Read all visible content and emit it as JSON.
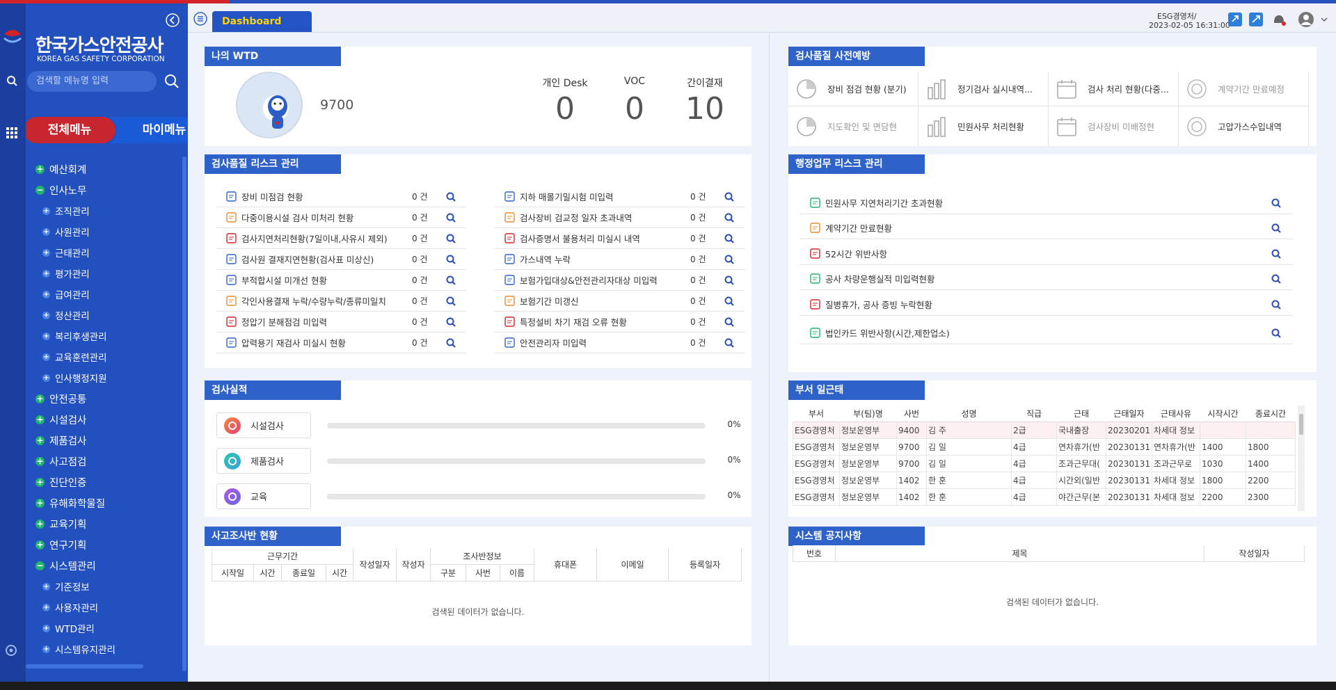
{
  "sidebar": {
    "org_name": "한국가스안전공사",
    "org_name_en": "KOREA GAS SAFETY CORPORATION",
    "search_placeholder": "검색할 메뉴명 입력",
    "tabs": [
      "전체메뉴",
      "마이메뉴"
    ],
    "menu": [
      {
        "label": "예산회계",
        "expanded": false
      },
      {
        "label": "인사노무",
        "expanded": true,
        "children": [
          "조직관리",
          "사원관리",
          "근태관리",
          "평가관리",
          "급여관리",
          "정산관리",
          "복리후생관리",
          "교육훈련관리",
          "인사행정지원"
        ]
      },
      {
        "label": "안전공통",
        "expanded": false
      },
      {
        "label": "시설검사",
        "expanded": false
      },
      {
        "label": "제품검사",
        "expanded": false
      },
      {
        "label": "사고점검",
        "expanded": false
      },
      {
        "label": "진단인증",
        "expanded": false
      },
      {
        "label": "유해화학물질",
        "expanded": false
      },
      {
        "label": "교육기획",
        "expanded": false
      },
      {
        "label": "연구기획",
        "expanded": false
      },
      {
        "label": "시스템관리",
        "expanded": true,
        "children": [
          "기준정보",
          "사용자관리",
          "WTD관리",
          "시스템유지관리"
        ]
      }
    ]
  },
  "header": {
    "tab": "Dashboard",
    "user": "ESG경영처/",
    "datetime": "2023-02-05 16:31:00"
  },
  "wtd": {
    "title": "나의 WTD",
    "emp_no": "9700",
    "stats": [
      {
        "label": "개인 Desk",
        "value": 0
      },
      {
        "label": "VOC",
        "value": 0
      },
      {
        "label": "간이결재",
        "value": 10
      }
    ]
  },
  "quality_risk": {
    "title": "검사품질 리스크 관리",
    "items": [
      {
        "label": "장비 미점검 현황",
        "count": "0 건"
      },
      {
        "label": "다중이용시설 검사 미처리 현황",
        "count": "0 건"
      },
      {
        "label": "검사지연처리현황(7일이내,사유시 제외)",
        "count": "0 건"
      },
      {
        "label": "검사원 결재지연현황(검사표 미상신)",
        "count": "0 건"
      },
      {
        "label": "부적합시설 미개선 현황",
        "count": "0 건"
      },
      {
        "label": "각인사용결재 누락/수량누락/종류미일치",
        "count": "0 건"
      },
      {
        "label": "정압기 분해점검 미입력",
        "count": "0 건"
      },
      {
        "label": "압력용기 재검사 미실시 현황",
        "count": "0 건"
      },
      {
        "label": "지하 매몰기밀시험 미입력",
        "count": "0 건"
      },
      {
        "label": "검사장비 검교정 일자 초과내역",
        "count": "0 건"
      },
      {
        "label": "검사증명서 불용처리 미실시 내역",
        "count": "0 건"
      },
      {
        "label": "가스내역 누락",
        "count": "0 건"
      },
      {
        "label": "보험가입대상&안전관리자대상 미입력",
        "count": "0 건"
      },
      {
        "label": "보험기간 미갱신",
        "count": "0 건"
      },
      {
        "label": "특정설비 차기 재검 오류 현황",
        "count": "0 건"
      },
      {
        "label": "안전관리자 미입력",
        "count": "0 건"
      }
    ]
  },
  "prevention": {
    "title": "검사품질 사전예방",
    "items": [
      {
        "label": "장비 점검 현황 (분기)",
        "dimmed": false
      },
      {
        "label": "정기검사 실시내역...",
        "dimmed": false
      },
      {
        "label": "검사 처리 현황(다중...",
        "dimmed": false
      },
      {
        "label": "계약기간 만료예정",
        "dimmed": true
      },
      {
        "label": "지도확인 및 면담현",
        "dimmed": true
      },
      {
        "label": "민원사무 처리현황",
        "dimmed": false
      },
      {
        "label": "검사장비 미배정현",
        "dimmed": true
      },
      {
        "label": "고압가스수입내역",
        "dimmed": false
      }
    ]
  },
  "admin_risk": {
    "title": "행정업무 리스크 관리",
    "items": [
      "민원사무 지연처리기간 초과현황",
      "계약기간 만료현황",
      "52시간 위반사항",
      "공사 차량운행실적 미입력현황",
      "질병휴가, 공사 증빙 누락현황",
      "법인카드 위반사항(시간,제한업소)"
    ]
  },
  "performance": {
    "title": "검사실적",
    "items": [
      {
        "label": "시설검사",
        "value": 0,
        "value_label": "0%"
      },
      {
        "label": "제품검사",
        "value": 0,
        "value_label": "0%"
      },
      {
        "label": "교육",
        "value": 0,
        "value_label": "0%"
      }
    ]
  },
  "attendance": {
    "title": "부서 일근태",
    "columns": [
      "부서",
      "부(팀)명",
      "사번",
      "성명",
      "직급",
      "근태",
      "근태일자",
      "근태사유",
      "시작시간",
      "종료시간"
    ],
    "rows": [
      [
        "ESG경영처",
        "정보운영부",
        "9400",
        "김 주",
        "2급",
        "국내출장",
        "20230201",
        "차세대 정보",
        null,
        null
      ],
      [
        "ESG경영처",
        "정보운영부",
        "9700",
        "김 일",
        "4급",
        "연차휴가(반",
        "20230131",
        "연차휴가(반",
        "1400",
        "1800"
      ],
      [
        "ESG경영처",
        "정보운영부",
        "9700",
        "김 일",
        "4급",
        "조과근무대(",
        "20230131",
        "조과근무로",
        "1030",
        "1400"
      ],
      [
        "ESG경영처",
        "정보운영부",
        "1402",
        "한 훈",
        "4급",
        "시간외(일반",
        "20230131",
        "차세대 정보",
        "1800",
        "2200"
      ],
      [
        "ESG경영처",
        "정보운영부",
        "1402",
        "한 훈",
        "4급",
        "야간근무(본",
        "20230131",
        "차세대 정보",
        "2200",
        "2300"
      ]
    ]
  },
  "accident": {
    "title": "사고조사반 현황",
    "groups": [
      "근무기간",
      "조사반정보"
    ],
    "columns": [
      "시작일",
      "시간",
      "종료일",
      "시간",
      "작성일자",
      "작성자",
      "구분",
      "사번",
      "이름",
      "휴대폰",
      "이메일",
      "등록일자"
    ],
    "empty": "검색된 데이터가 없습니다."
  },
  "notice": {
    "title": "시스템 공지사항",
    "columns": [
      "번호",
      "제목",
      "작성일자"
    ],
    "empty": "검색된 데이터가 없습니다."
  }
}
